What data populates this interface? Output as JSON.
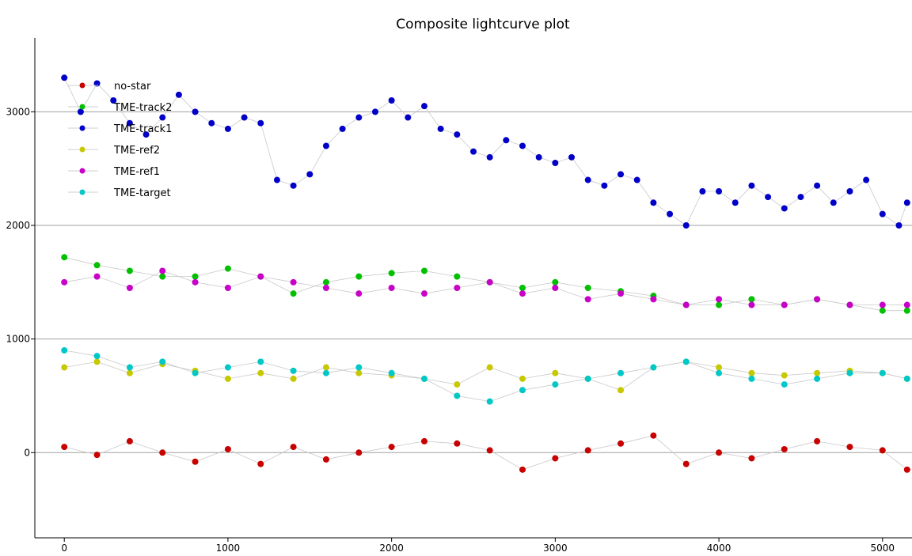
{
  "chart_data": {
    "type": "scatter",
    "title": "Composite lightcurve plot",
    "xlabel": "",
    "ylabel": "",
    "xlim": [
      -180,
      5180
    ],
    "ylim": [
      -750,
      3650
    ],
    "xticks": [
      0,
      1000,
      2000,
      3000,
      4000,
      5000
    ],
    "yticks": [
      0,
      1000,
      2000,
      3000
    ],
    "grid": {
      "horizontal": true,
      "vertical": false
    },
    "legend": {
      "placement": "top-left"
    },
    "connector_color": "#c8c8c8",
    "series": [
      {
        "name": "no-star",
        "color": "#c80000",
        "x": [
          0,
          200,
          400,
          600,
          800,
          1000,
          1200,
          1400,
          1600,
          1800,
          2000,
          2200,
          2400,
          2600,
          2800,
          3000,
          3200,
          3400,
          3600,
          3800,
          4000,
          4200,
          4400,
          4600,
          4800,
          5000,
          5150
        ],
        "y": [
          50,
          -20,
          100,
          0,
          -80,
          30,
          -100,
          50,
          -60,
          0,
          50,
          100,
          80,
          20,
          -150,
          -50,
          20,
          80,
          150,
          -100,
          0,
          -50,
          30,
          100,
          50,
          20,
          -150
        ]
      },
      {
        "name": "TME-track2",
        "color": "#00c000",
        "x": [
          0,
          200,
          400,
          600,
          800,
          1000,
          1200,
          1400,
          1600,
          1800,
          2000,
          2200,
          2400,
          2600,
          2800,
          3000,
          3200,
          3400,
          3600,
          3800,
          4000,
          4200,
          4400,
          4600,
          4800,
          5000,
          5150
        ],
        "y": [
          1720,
          1650,
          1600,
          1550,
          1550,
          1620,
          1550,
          1400,
          1500,
          1550,
          1580,
          1600,
          1550,
          1500,
          1450,
          1500,
          1450,
          1420,
          1380,
          1300,
          1300,
          1350,
          1300,
          1350,
          1300,
          1250,
          1250
        ]
      },
      {
        "name": "TME-track1",
        "color": "#0000c8",
        "x": [
          0,
          100,
          200,
          300,
          400,
          500,
          600,
          700,
          800,
          900,
          1000,
          1100,
          1200,
          1300,
          1400,
          1500,
          1600,
          1700,
          1800,
          1900,
          2000,
          2100,
          2200,
          2300,
          2400,
          2500,
          2600,
          2700,
          2800,
          2900,
          3000,
          3100,
          3200,
          3300,
          3400,
          3500,
          3600,
          3700,
          3800,
          3900,
          4000,
          4100,
          4200,
          4300,
          4400,
          4500,
          4600,
          4700,
          4800,
          4900,
          5000,
          5100,
          5150
        ],
        "y": [
          3300,
          3000,
          3250,
          3100,
          2900,
          2800,
          2950,
          3150,
          3000,
          2900,
          2850,
          2950,
          2900,
          2400,
          2350,
          2450,
          2700,
          2850,
          2950,
          3000,
          3100,
          2950,
          3050,
          2850,
          2800,
          2650,
          2600,
          2750,
          2700,
          2600,
          2550,
          2600,
          2400,
          2350,
          2450,
          2400,
          2200,
          2100,
          2000,
          2300,
          2300,
          2200,
          2350,
          2250,
          2150,
          2250,
          2350,
          2200,
          2300,
          2400,
          2100,
          2000,
          2200
        ]
      },
      {
        "name": "TME-ref2",
        "color": "#c8c800",
        "x": [
          0,
          200,
          400,
          600,
          800,
          1000,
          1200,
          1400,
          1600,
          1800,
          2000,
          2200,
          2400,
          2600,
          2800,
          3000,
          3200,
          3400,
          3600,
          3800,
          4000,
          4200,
          4400,
          4600,
          4800,
          5000,
          5150
        ],
        "y": [
          750,
          800,
          700,
          780,
          720,
          650,
          700,
          650,
          750,
          700,
          680,
          650,
          600,
          750,
          650,
          700,
          650,
          550,
          750,
          800,
          750,
          700,
          680,
          700,
          720,
          700,
          650
        ]
      },
      {
        "name": "TME-ref1",
        "color": "#c800c8",
        "x": [
          0,
          200,
          400,
          600,
          800,
          1000,
          1200,
          1400,
          1600,
          1800,
          2000,
          2200,
          2400,
          2600,
          2800,
          3000,
          3200,
          3400,
          3600,
          3800,
          4000,
          4200,
          4400,
          4600,
          4800,
          5000,
          5150
        ],
        "y": [
          1500,
          1550,
          1450,
          1600,
          1500,
          1450,
          1550,
          1500,
          1450,
          1400,
          1450,
          1400,
          1450,
          1500,
          1400,
          1450,
          1350,
          1400,
          1350,
          1300,
          1350,
          1300,
          1300,
          1350,
          1300,
          1300,
          1300
        ]
      },
      {
        "name": "TME-target",
        "color": "#00c8c8",
        "x": [
          0,
          200,
          400,
          600,
          800,
          1000,
          1200,
          1400,
          1600,
          1800,
          2000,
          2200,
          2400,
          2600,
          2800,
          3000,
          3200,
          3400,
          3600,
          3800,
          4000,
          4200,
          4400,
          4600,
          4800,
          5000,
          5150
        ],
        "y": [
          900,
          850,
          750,
          800,
          700,
          750,
          800,
          720,
          700,
          750,
          700,
          650,
          500,
          450,
          550,
          600,
          650,
          700,
          750,
          800,
          700,
          650,
          600,
          650,
          700,
          700,
          650
        ]
      }
    ]
  }
}
